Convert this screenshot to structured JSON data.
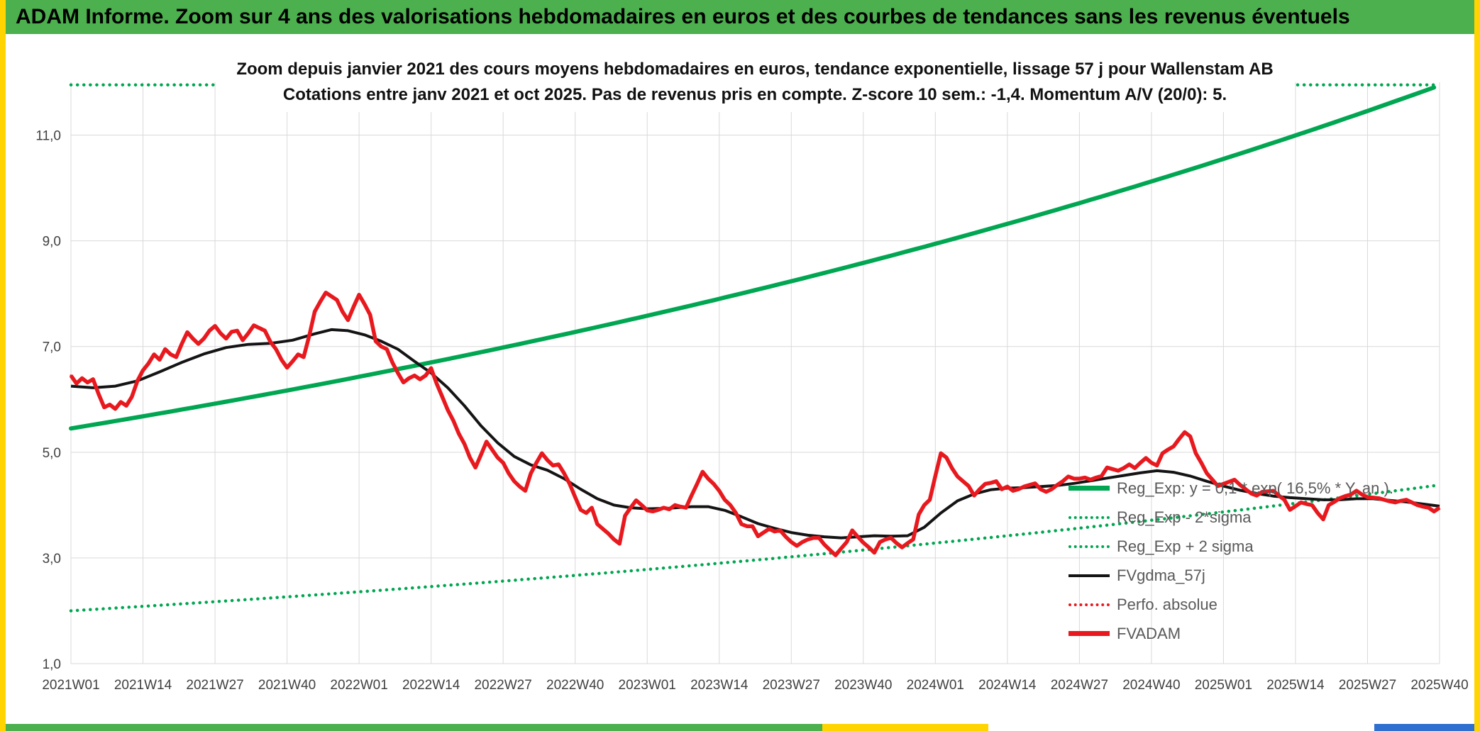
{
  "header": {
    "title": "ADAM Informe. Zoom sur 4 ans des valorisations hebdomadaires en euros et des courbes de tendances sans les revenus éventuels"
  },
  "theme": {
    "header_bg": "#4cb04e",
    "side_strip": "#ffd400",
    "grid": "#d9d9d9",
    "axis_text": "#404040",
    "legend_text": "#595959",
    "reg_green": "#00a651",
    "series_red": "#e8191e",
    "series_black": "#141414"
  },
  "chart_data": {
    "type": "line",
    "title_line1": "Zoom depuis janvier 2021 des cours moyens hebdomadaires en euros, tendance exponentielle, lissage 57 j pour Wallenstam AB",
    "title_line2": "Cotations entre janv 2021 et oct 2025. Pas de revenus pris en compte. Z-score 10 sem.: -1,4. Momentum A/V (20/0): 5.",
    "x_axis": {
      "total_weeks": 247,
      "tick_weeks": [
        0,
        13,
        26,
        39,
        52,
        65,
        78,
        91,
        104,
        117,
        130,
        143,
        156,
        169,
        182,
        195,
        208,
        221,
        234,
        247
      ],
      "tick_labels": [
        "2021W01",
        "2021W14",
        "2021W27",
        "2021W40",
        "2022W01",
        "2022W14",
        "2022W27",
        "2022W40",
        "2023W01",
        "2023W14",
        "2023W27",
        "2023W40",
        "2024W01",
        "2024W14",
        "2024W27",
        "2024W40",
        "2025W01",
        "2025W14",
        "2025W27",
        "2025W40"
      ]
    },
    "y_axis": {
      "min": 1.0,
      "max": 12.0,
      "tick_values": [
        1,
        3,
        5,
        7,
        9,
        11
      ],
      "tick_labels": [
        "1,0",
        "3,0",
        "5,0",
        "7,0",
        "9,0",
        "11,0"
      ]
    },
    "grid": "on",
    "legend_position": "right-middle-overlay",
    "series": [
      {
        "name": "Reg_Exp",
        "legend_label": "Reg_Exp: y = 0,1 * exp( 16,5% * Y, an ).",
        "color": "#00a651",
        "style": "solid",
        "width": 6,
        "model": "exponential",
        "start_value": 5.45,
        "end_value": 11.94,
        "annual_rate_pct": 16.5
      },
      {
        "name": "Reg_Exp - 2*sigma",
        "legend_label": "Reg_Exp - 2*sigma",
        "color": "#00a651",
        "style": "dotted",
        "model": "exponential",
        "start_value": 2.0,
        "end_value": 4.38
      },
      {
        "name": "Reg_Exp + 2 sigma",
        "legend_label": "Reg_Exp + 2 sigma",
        "color": "#00a651",
        "style": "dotted",
        "model": "clipped-at-plot-top",
        "clipped_at_plot_top": 11.95
      },
      {
        "name": "FVgdma_57j",
        "legend_label": "FVgdma_57j",
        "color": "#141414",
        "style": "solid",
        "width": 4,
        "points": [
          [
            0,
            6.25
          ],
          [
            4,
            6.22
          ],
          [
            8,
            6.25
          ],
          [
            12,
            6.35
          ],
          [
            16,
            6.52
          ],
          [
            20,
            6.7
          ],
          [
            24,
            6.86
          ],
          [
            28,
            6.98
          ],
          [
            32,
            7.04
          ],
          [
            36,
            7.06
          ],
          [
            40,
            7.12
          ],
          [
            44,
            7.24
          ],
          [
            47,
            7.32
          ],
          [
            50,
            7.3
          ],
          [
            53,
            7.22
          ],
          [
            56,
            7.1
          ],
          [
            59,
            6.95
          ],
          [
            62,
            6.72
          ],
          [
            65,
            6.5
          ],
          [
            68,
            6.22
          ],
          [
            71,
            5.88
          ],
          [
            74,
            5.5
          ],
          [
            77,
            5.18
          ],
          [
            80,
            4.92
          ],
          [
            83,
            4.76
          ],
          [
            86,
            4.66
          ],
          [
            89,
            4.5
          ],
          [
            92,
            4.3
          ],
          [
            95,
            4.12
          ],
          [
            98,
            4.0
          ],
          [
            101,
            3.95
          ],
          [
            104,
            3.93
          ],
          [
            108,
            3.94
          ],
          [
            112,
            3.97
          ],
          [
            115,
            3.97
          ],
          [
            118,
            3.9
          ],
          [
            121,
            3.78
          ],
          [
            124,
            3.65
          ],
          [
            127,
            3.56
          ],
          [
            130,
            3.48
          ],
          [
            133,
            3.43
          ],
          [
            136,
            3.4
          ],
          [
            139,
            3.38
          ],
          [
            142,
            3.4
          ],
          [
            145,
            3.42
          ],
          [
            148,
            3.41
          ],
          [
            151,
            3.42
          ],
          [
            154,
            3.58
          ],
          [
            157,
            3.85
          ],
          [
            160,
            4.08
          ],
          [
            163,
            4.21
          ],
          [
            166,
            4.29
          ],
          [
            169,
            4.32
          ],
          [
            172,
            4.33
          ],
          [
            175,
            4.35
          ],
          [
            178,
            4.37
          ],
          [
            181,
            4.41
          ],
          [
            184,
            4.46
          ],
          [
            187,
            4.51
          ],
          [
            190,
            4.56
          ],
          [
            193,
            4.61
          ],
          [
            196,
            4.65
          ],
          [
            199,
            4.62
          ],
          [
            202,
            4.55
          ],
          [
            205,
            4.45
          ],
          [
            208,
            4.36
          ],
          [
            211,
            4.28
          ],
          [
            214,
            4.22
          ],
          [
            217,
            4.17
          ],
          [
            220,
            4.14
          ],
          [
            223,
            4.12
          ],
          [
            226,
            4.1
          ],
          [
            229,
            4.1
          ],
          [
            232,
            4.12
          ],
          [
            235,
            4.12
          ],
          [
            238,
            4.09
          ],
          [
            241,
            4.06
          ],
          [
            244,
            4.02
          ],
          [
            247,
            3.98
          ]
        ]
      },
      {
        "name": "Perfo. absolue",
        "legend_label": "Perfo. absolue",
        "color": "#e8191e",
        "style": "dotted",
        "same_as": "FVADAM"
      },
      {
        "name": "FVADAM",
        "legend_label": "FVADAM",
        "color": "#e8191e",
        "style": "solid",
        "width": 5.5,
        "weekly_values": [
          6.45,
          6.3,
          6.4,
          6.32,
          6.38,
          6.1,
          5.85,
          5.9,
          5.82,
          5.95,
          5.88,
          6.05,
          6.35,
          6.55,
          6.68,
          6.85,
          6.75,
          6.95,
          6.85,
          6.8,
          7.05,
          7.27,
          7.15,
          7.05,
          7.15,
          7.3,
          7.39,
          7.25,
          7.15,
          7.28,
          7.3,
          7.12,
          7.25,
          7.4,
          7.35,
          7.3,
          7.09,
          6.95,
          6.75,
          6.6,
          6.72,
          6.85,
          6.8,
          7.2,
          7.66,
          7.85,
          8.02,
          7.95,
          7.88,
          7.66,
          7.5,
          7.75,
          7.98,
          7.8,
          7.6,
          7.1,
          7.0,
          6.95,
          6.7,
          6.5,
          6.32,
          6.4,
          6.45,
          6.38,
          6.45,
          6.59,
          6.3,
          6.05,
          5.8,
          5.6,
          5.35,
          5.16,
          4.9,
          4.71,
          4.95,
          5.2,
          5.05,
          4.9,
          4.8,
          4.6,
          4.45,
          4.35,
          4.27,
          4.6,
          4.8,
          4.98,
          4.85,
          4.75,
          4.77,
          4.6,
          4.4,
          4.15,
          3.91,
          3.85,
          3.95,
          3.64,
          3.55,
          3.46,
          3.35,
          3.27,
          3.8,
          3.95,
          4.09,
          4.0,
          3.9,
          3.88,
          3.91,
          3.95,
          3.92,
          4.0,
          3.97,
          3.95,
          4.18,
          4.4,
          4.63,
          4.5,
          4.4,
          4.27,
          4.1,
          4.0,
          3.85,
          3.64,
          3.6,
          3.6,
          3.41,
          3.48,
          3.55,
          3.5,
          3.52,
          3.4,
          3.3,
          3.23,
          3.3,
          3.35,
          3.38,
          3.38,
          3.25,
          3.15,
          3.05,
          3.18,
          3.3,
          3.52,
          3.4,
          3.29,
          3.2,
          3.1,
          3.3,
          3.35,
          3.38,
          3.28,
          3.2,
          3.28,
          3.35,
          3.82,
          4.0,
          4.1,
          4.55,
          4.98,
          4.9,
          4.7,
          4.54,
          4.45,
          4.36,
          4.18,
          4.3,
          4.4,
          4.42,
          4.45,
          4.3,
          4.35,
          4.27,
          4.3,
          4.35,
          4.38,
          4.41,
          4.3,
          4.25,
          4.3,
          4.38,
          4.45,
          4.54,
          4.5,
          4.5,
          4.52,
          4.48,
          4.52,
          4.55,
          4.71,
          4.68,
          4.65,
          4.7,
          4.77,
          4.7,
          4.8,
          4.89,
          4.8,
          4.75,
          4.98,
          5.05,
          5.11,
          5.25,
          5.38,
          5.3,
          4.98,
          4.8,
          4.6,
          4.48,
          4.36,
          4.4,
          4.44,
          4.48,
          4.38,
          4.3,
          4.22,
          4.18,
          4.25,
          4.26,
          4.27,
          4.18,
          4.1,
          3.91,
          3.98,
          4.05,
          4.02,
          4.0,
          3.85,
          3.73,
          4.0,
          4.06,
          4.13,
          4.17,
          4.2,
          4.27,
          4.2,
          4.15,
          4.14,
          4.13,
          4.1,
          4.07,
          4.05,
          4.08,
          4.1,
          4.05,
          4.0,
          3.97,
          3.95,
          3.88,
          3.95
        ]
      }
    ]
  },
  "footer": {
    "segments": [
      {
        "color": "#4cb04e",
        "width_pct": 55.6
      },
      {
        "color": "#ffd400",
        "width_pct": 11.3
      },
      {
        "color": "#ffffff",
        "width_pct": 26.3
      },
      {
        "color": "#2e6fd0",
        "width_pct": 6.8
      }
    ]
  }
}
